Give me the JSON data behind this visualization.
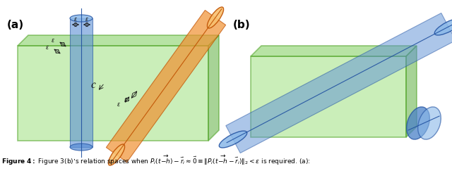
{
  "figsize": [
    6.4,
    2.43
  ],
  "dpi": 100,
  "background_color": "#ffffff",
  "panel_a_label": "(a)",
  "panel_b_label": "(b)",
  "green_face": "#7dcc5a",
  "green_edge": "#4aa020",
  "green_box_face": "#a0e080",
  "blue_face": "#5b8fd5",
  "blue_edge": "#2050a0",
  "blue_light": "#8ab8e8",
  "orange_face": "#f09030",
  "orange_edge": "#c05000",
  "orange_light": "#f8c070",
  "eps_color": "#111111",
  "label_color": "#000000"
}
